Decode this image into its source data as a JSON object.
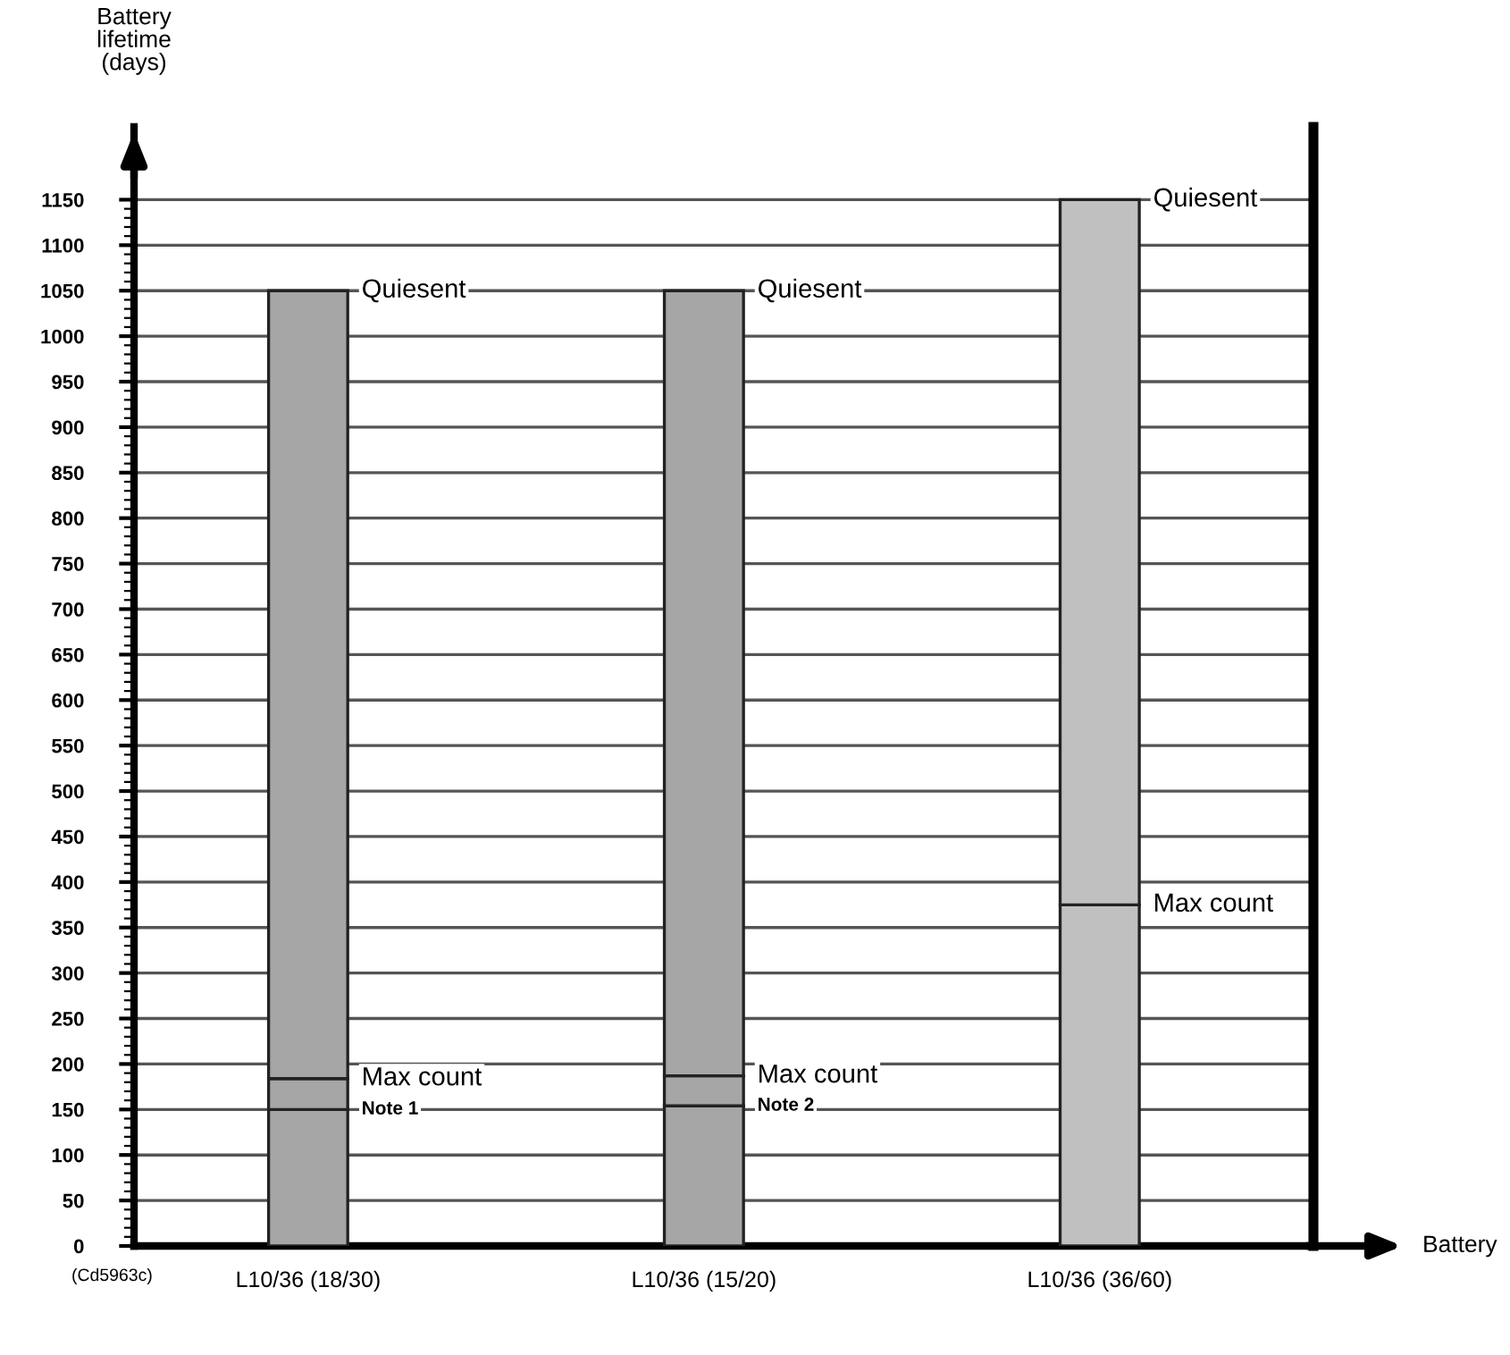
{
  "chart_data": {
    "type": "bar",
    "stacked": true,
    "xlabel": "Battery",
    "ylabel": "Battery\nlifetime\n(days)",
    "categories": [
      "L10/36 (18/30)",
      "L10/36 (15/20)",
      "L10/36 (36/60)"
    ],
    "series": [
      {
        "colors": [
          "#a6a6a6",
          "#a6a6a6",
          "#c0c0c0"
        ],
        "values": [
          150,
          154,
          null
        ]
      },
      {
        "colors": [
          "#a6a6a6",
          "#a6a6a6",
          "#c0c0c0"
        ],
        "values": [
          34,
          33,
          375
        ]
      },
      {
        "colors": [
          "#a6a6a6",
          "#a6a6a6",
          "#c0c0c0"
        ],
        "values": [
          866,
          863,
          775
        ]
      }
    ],
    "ylim": [
      0,
      1230
    ],
    "yticks": [
      0,
      50,
      100,
      150,
      200,
      250,
      300,
      350,
      400,
      450,
      500,
      550,
      600,
      650,
      700,
      750,
      800,
      850,
      900,
      950,
      1000,
      1050,
      1100,
      1150
    ],
    "grid": "y",
    "annotations": [
      {
        "text": "Quiesent",
        "x": "L10/36 (18/30)",
        "y": 1050
      },
      {
        "text": "Max count",
        "x": "L10/36 (18/30)",
        "y": 184
      },
      {
        "text": "Note 1",
        "x": "L10/36 (18/30)",
        "y": 150
      },
      {
        "text": "Quiesent",
        "x": "L10/36 (15/20)",
        "y": 1050
      },
      {
        "text": "Max count",
        "x": "L10/36 (15/20)",
        "y": 187
      },
      {
        "text": "Note 2",
        "x": "L10/36 (15/20)",
        "y": 154
      },
      {
        "text": "Quiesent",
        "x": "L10/36 (36/60)",
        "y": 1150
      },
      {
        "text": "Max count",
        "x": "L10/36 (36/60)",
        "y": 375
      },
      "(Cd5963c)"
    ]
  }
}
